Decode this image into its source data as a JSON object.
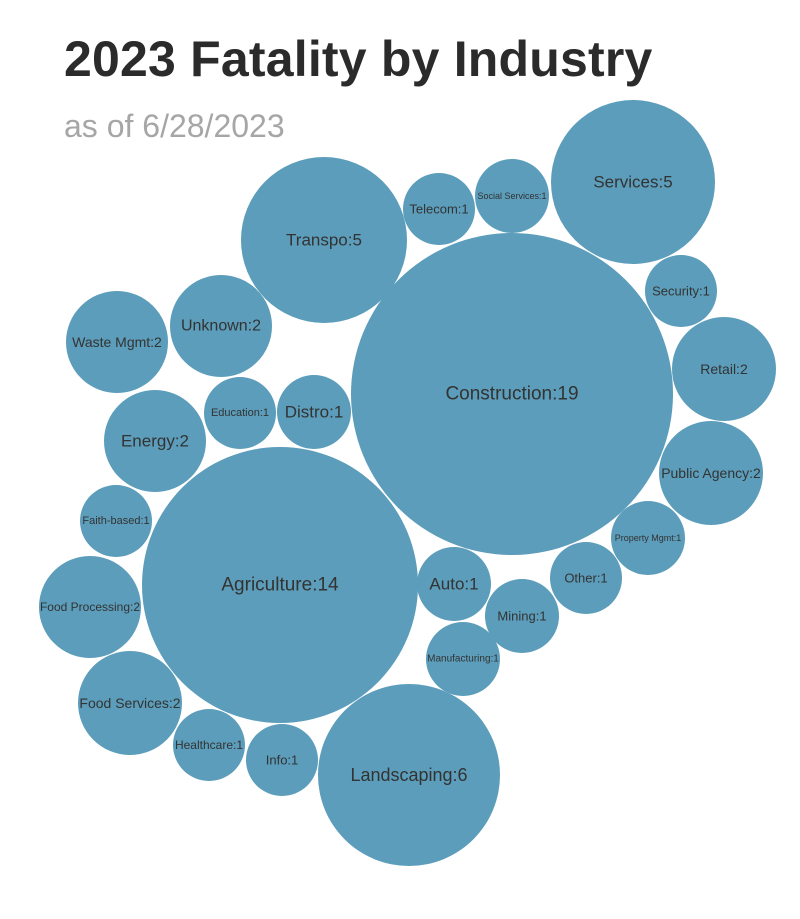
{
  "chart_data": {
    "type": "bubble",
    "title": "2023 Fatality by Industry",
    "subtitle": "as of 6/28/2023",
    "color": "#5b9dba",
    "items": [
      {
        "label": "Construction",
        "value": 19
      },
      {
        "label": "Agriculture",
        "value": 14
      },
      {
        "label": "Landscaping",
        "value": 6
      },
      {
        "label": "Services",
        "value": 5
      },
      {
        "label": "Transpo",
        "value": 5
      },
      {
        "label": "Unknown",
        "value": 2
      },
      {
        "label": "Waste Mgmt",
        "value": 2
      },
      {
        "label": "Energy",
        "value": 2
      },
      {
        "label": "Retail",
        "value": 2
      },
      {
        "label": "Public Agency",
        "value": 2
      },
      {
        "label": "Food Processing",
        "value": 2
      },
      {
        "label": "Food Services",
        "value": 2
      },
      {
        "label": "Telecom",
        "value": 1
      },
      {
        "label": "Social Services",
        "value": 1
      },
      {
        "label": "Security",
        "value": 1
      },
      {
        "label": "Education",
        "value": 1
      },
      {
        "label": "Distro",
        "value": 1
      },
      {
        "label": "Faith-based",
        "value": 1
      },
      {
        "label": "Property Mgmt",
        "value": 1
      },
      {
        "label": "Other",
        "value": 1
      },
      {
        "label": "Auto",
        "value": 1
      },
      {
        "label": "Mining",
        "value": 1
      },
      {
        "label": "Manufacturing",
        "value": 1
      },
      {
        "label": "Healthcare",
        "value": 1
      },
      {
        "label": "Info",
        "value": 1
      }
    ]
  }
}
